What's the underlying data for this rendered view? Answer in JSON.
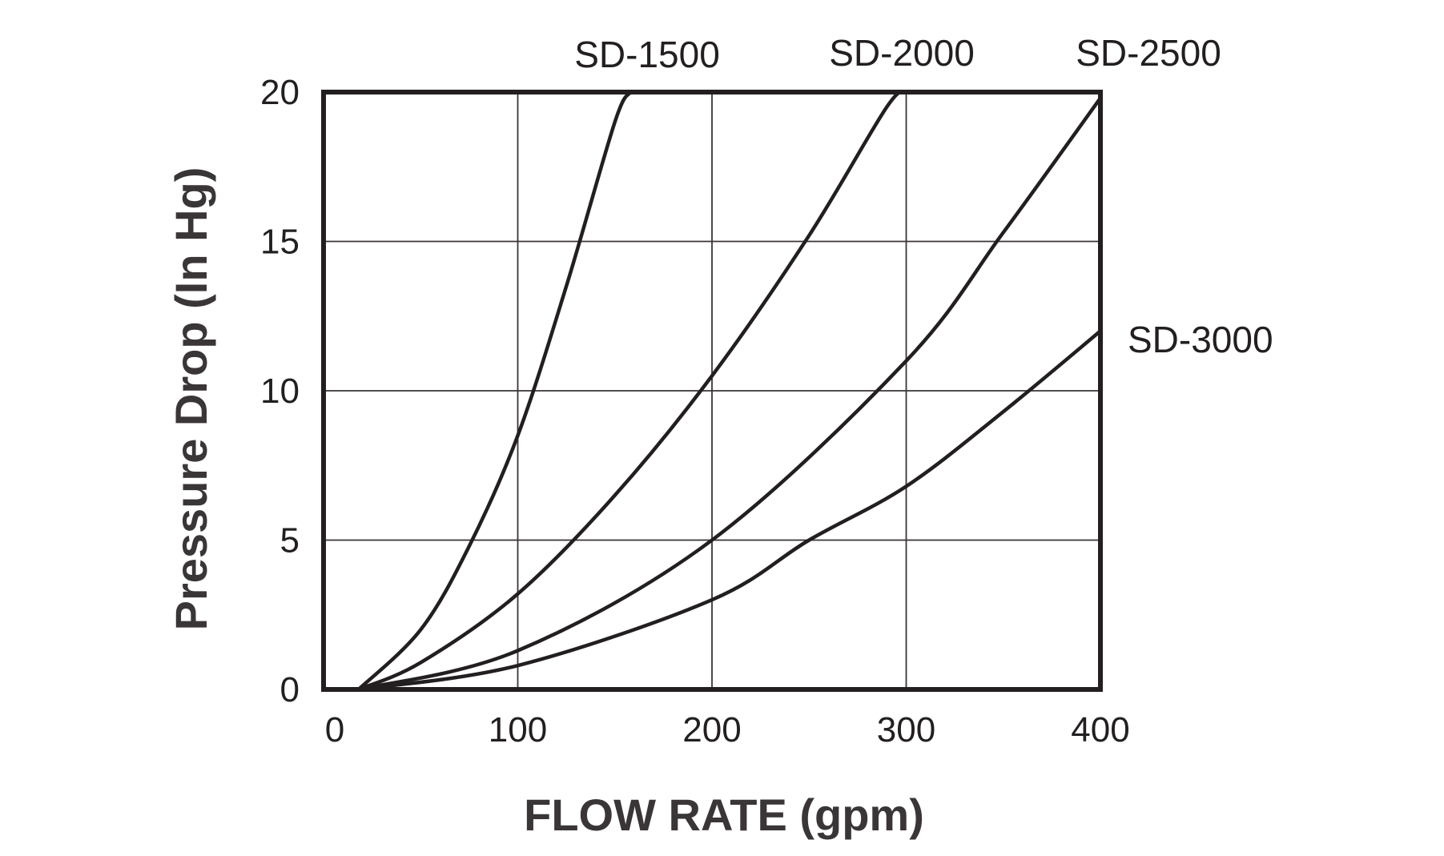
{
  "chart_data": {
    "type": "line",
    "xlabel": "FLOW RATE (gpm)",
    "ylabel": "Pressure Drop (In Hg)",
    "xlim": [
      0,
      400
    ],
    "ylim": [
      0,
      20
    ],
    "x_ticks": [
      "0",
      "100",
      "200",
      "300",
      "400"
    ],
    "y_ticks": [
      "0",
      "5",
      "10",
      "15",
      "20"
    ],
    "grid": true,
    "legend": "labels at curve ends (top and right of plot)",
    "series": [
      {
        "name": "SD-1500",
        "x": [
          18,
          50,
          75,
          100,
          125,
          150,
          158
        ],
        "y": [
          0,
          2.0,
          4.8,
          8.5,
          13.5,
          19.0,
          20
        ]
      },
      {
        "name": "SD-2000",
        "x": [
          18,
          50,
          100,
          150,
          200,
          250,
          290,
          300
        ],
        "y": [
          0,
          0.9,
          3.2,
          6.5,
          10.5,
          15.2,
          19.5,
          20
        ]
      },
      {
        "name": "SD-2500",
        "x": [
          18,
          100,
          200,
          300,
          350,
          400
        ],
        "y": [
          0,
          1.3,
          5.0,
          11.0,
          15.3,
          19.8
        ]
      },
      {
        "name": "SD-3000",
        "x": [
          18,
          100,
          200,
          250,
          300,
          350,
          400
        ],
        "y": [
          0,
          0.8,
          3.0,
          5.0,
          6.8,
          9.3,
          12.0
        ]
      }
    ]
  }
}
